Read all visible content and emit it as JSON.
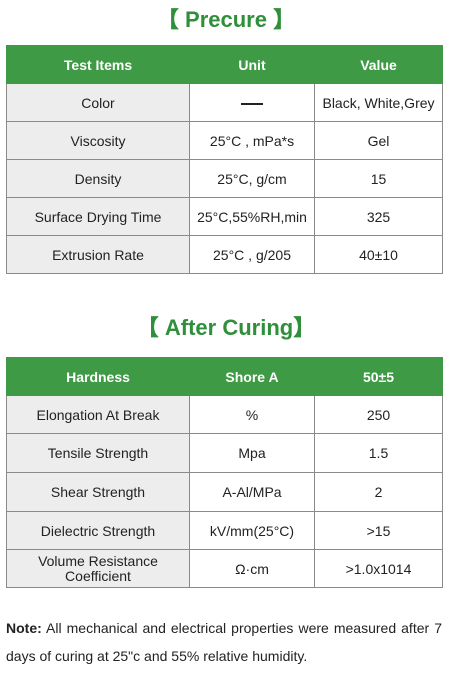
{
  "precure": {
    "title": "【 Precure 】",
    "headers": [
      "Test Items",
      "Unit",
      "Value"
    ],
    "rows": [
      {
        "item": "Color",
        "unit": "—",
        "value": "Black, White,Grey"
      },
      {
        "item": "Viscosity",
        "unit": "25°C , mPa*s",
        "value": "Gel"
      },
      {
        "item": "Density",
        "unit": "25°C, g/cm",
        "value": "15"
      },
      {
        "item": "Surface Drying Time",
        "unit": "25°C,55%RH,min",
        "value": "325"
      },
      {
        "item": "Extrusion Rate",
        "unit": "25°C , g/205",
        "value": "40±10"
      }
    ]
  },
  "after_curing": {
    "title": "【 After Curing】",
    "headers": [
      "Hardness",
      "Shore A",
      "50±5"
    ],
    "rows": [
      {
        "item": "Elongation At Break",
        "unit": "%",
        "value": "250"
      },
      {
        "item": "Tensile Strength",
        "unit": "Mpa",
        "value": "1.5"
      },
      {
        "item": "Shear Strength",
        "unit": "A-Al/MPa",
        "value": "2"
      },
      {
        "item": "Dielectric Strength",
        "unit": "kV/mm(25°C)",
        "value": ">15"
      },
      {
        "item": "Volume Resistance Coefficient",
        "unit": "Ω·cm",
        "value": ">1.0x1014"
      }
    ]
  },
  "note": {
    "label": "Note:",
    "text": " All mechanical and electrical properties were measured after 7 days of curing at 25\"c and 55% relative humidity."
  }
}
